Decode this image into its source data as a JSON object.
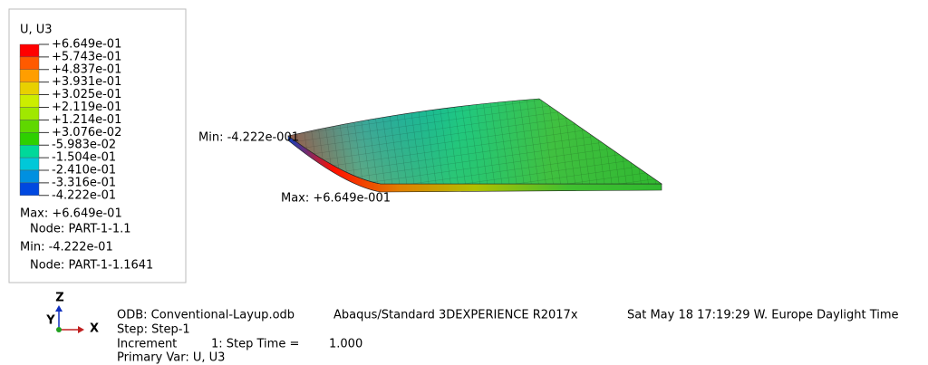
{
  "legend": {
    "title": "U, U3",
    "levels": [
      "+6.649e-01",
      "+5.743e-01",
      "+4.837e-01",
      "+3.931e-01",
      "+3.025e-01",
      "+2.119e-01",
      "+1.214e-01",
      "+3.076e-02",
      "-5.983e-02",
      "-1.504e-01",
      "-2.410e-01",
      "-3.316e-01",
      "-4.222e-01"
    ],
    "colors": [
      "#ff0000",
      "#ff5a00",
      "#ff9e00",
      "#e8d000",
      "#ccee00",
      "#a0e800",
      "#5fd800",
      "#2ed000",
      "#00d89a",
      "#00c8d8",
      "#0090e0",
      "#0048e0"
    ],
    "max": "Max: +6.649e-01",
    "max_node": "Node: PART-1-1.1",
    "min": "Min: -4.222e-01",
    "min_node": "Node: PART-1-1.1641"
  },
  "viewport": {
    "min_label": "Min: -4.222e-001",
    "max_label": "Max: +6.649e-001"
  },
  "triad": {
    "z": "Z",
    "y": "Y",
    "x": "X"
  },
  "info": {
    "odb": "ODB: Conventional-Layup.odb",
    "solver": "Abaqus/Standard 3DEXPERIENCE R2017x",
    "date": "Sat May 18 17:19:29 W. Europe Daylight Time",
    "step": "Step: Step-1",
    "increment": "Increment",
    "step_time_label": "1: Step Time =",
    "step_time": "1.000",
    "primary_var": "Primary Var: U, U3"
  }
}
